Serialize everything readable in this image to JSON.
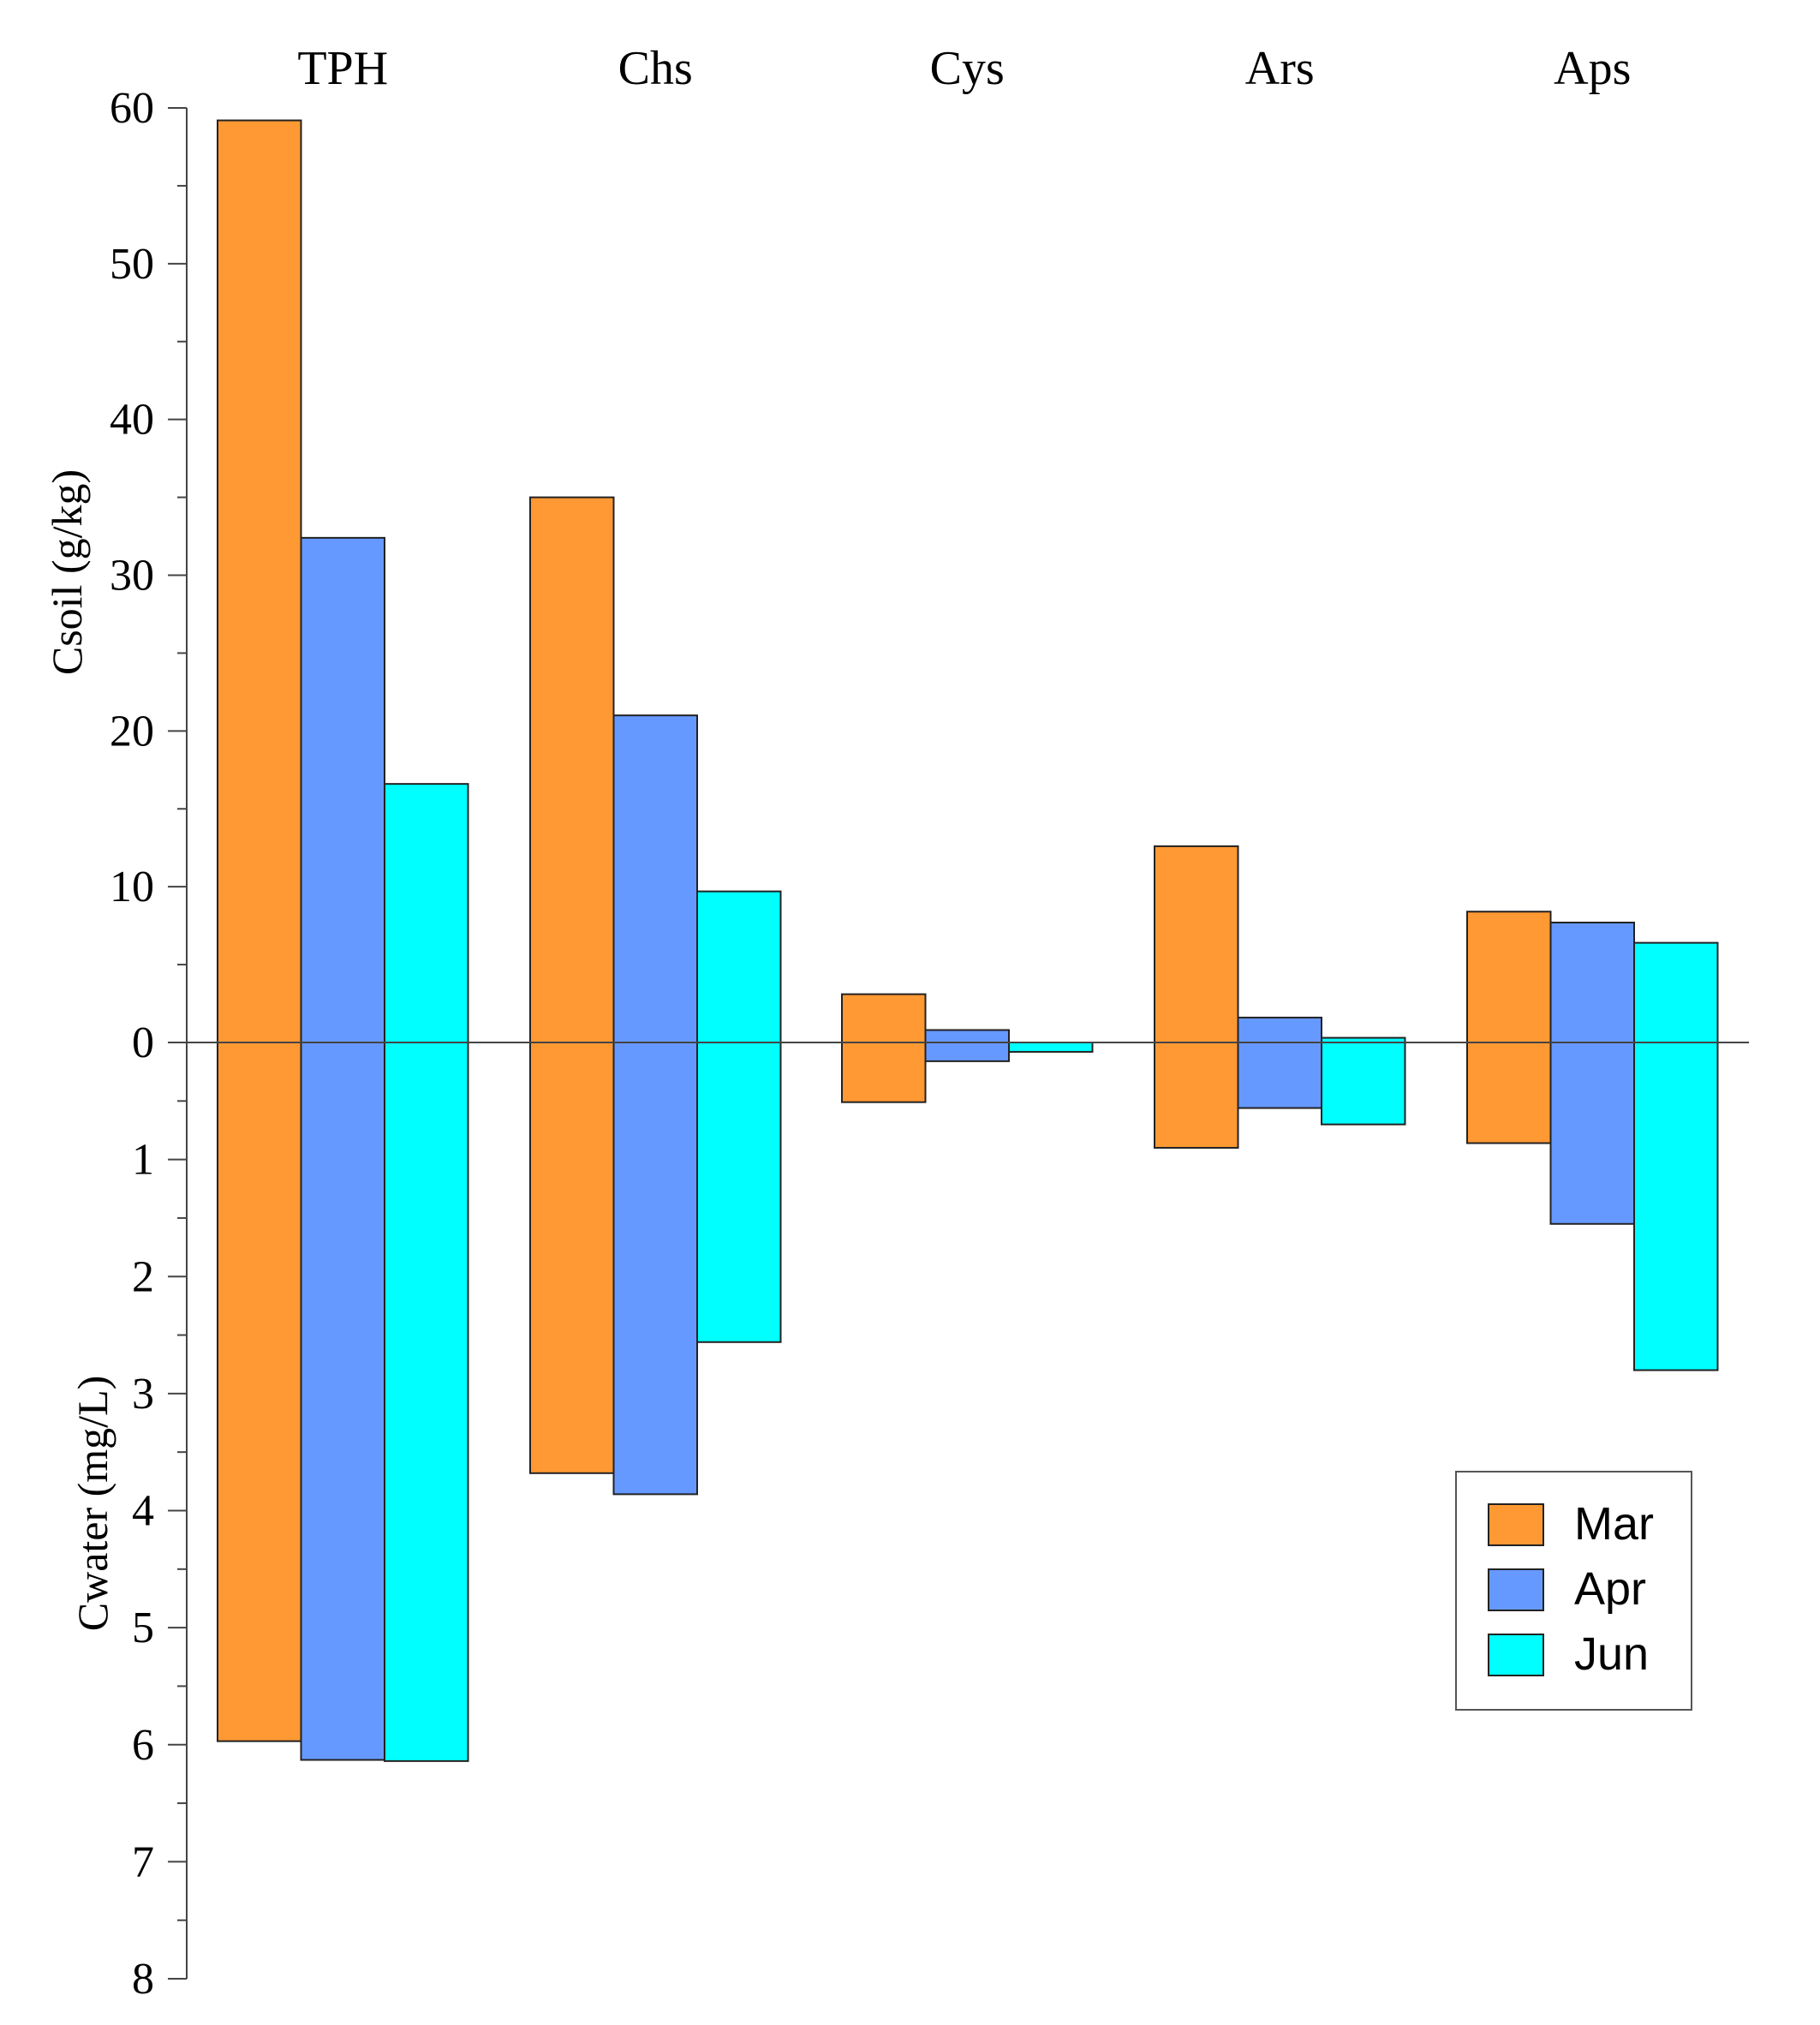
{
  "chart_data": {
    "type": "bar",
    "categories": [
      "TPH",
      "Chs",
      "Cys",
      "Ars",
      "Aps"
    ],
    "upper_axis": {
      "label": "Csoil (g/kg)",
      "range": [
        0,
        60
      ],
      "ticks": [
        "0",
        "10",
        "20",
        "30",
        "40",
        "50",
        "60"
      ]
    },
    "lower_axis": {
      "label": "Cwater (mg/L)",
      "range": [
        0,
        8
      ],
      "ticks": [
        "1",
        "2",
        "3",
        "4",
        "5",
        "6",
        "7",
        "8"
      ]
    },
    "series": [
      {
        "name": "Mar",
        "color": "#ff9933",
        "soil": [
          59.2,
          35.0,
          3.1,
          12.6,
          8.4
        ],
        "water": [
          5.97,
          3.68,
          0.51,
          0.9,
          0.86
        ]
      },
      {
        "name": "Apr",
        "color": "#6699ff",
        "soil": [
          32.4,
          21.0,
          0.8,
          1.6,
          7.7
        ],
        "water": [
          6.13,
          3.86,
          0.16,
          0.56,
          1.55
        ]
      },
      {
        "name": "Jun",
        "color": "#00ffff",
        "soil": [
          16.6,
          9.7,
          0.0,
          0.3,
          6.4
        ],
        "water": [
          6.14,
          2.56,
          0.08,
          0.7,
          2.8
        ]
      }
    ],
    "legend": {
      "position": "lower-right",
      "entries": [
        "Mar",
        "Apr",
        "Jun"
      ]
    }
  }
}
